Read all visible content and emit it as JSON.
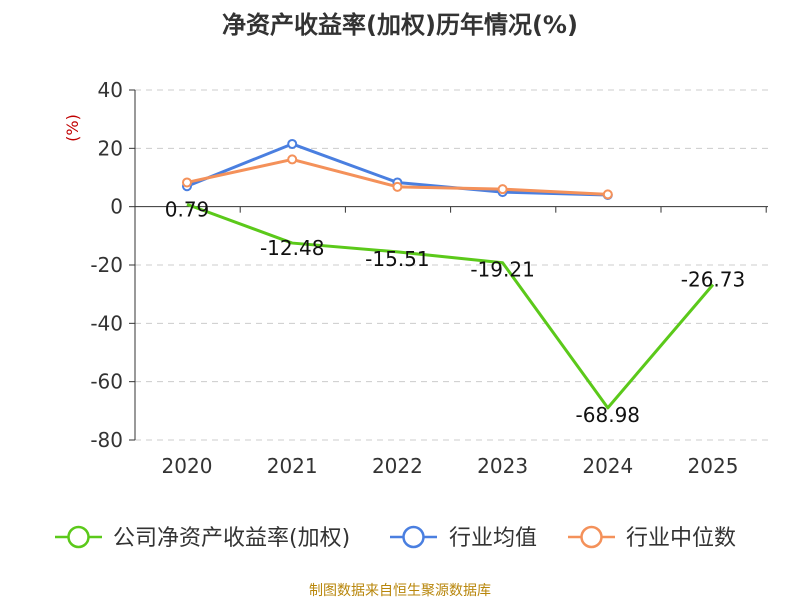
{
  "chart_data": {
    "type": "line",
    "title": "净资产收益率(加权)历年情况(%)",
    "ylabel": "(%)",
    "xlabel": "",
    "categories": [
      "2020",
      "2021",
      "2022",
      "2023",
      "2024",
      "2025"
    ],
    "ylim": [
      -80,
      40
    ],
    "yticks": [
      40,
      20,
      0,
      -20,
      -40,
      -60,
      -80
    ],
    "grid": true,
    "legend_position": "bottom",
    "series": [
      {
        "name": "公司净资产收益率(加权)",
        "color": "#5bc91a",
        "values": [
          0.79,
          -12.48,
          -15.51,
          -19.21,
          -68.98,
          -26.73
        ],
        "labels": [
          "0.79",
          "-12.48",
          "-15.51",
          "-19.21",
          "-68.98",
          "-26.73"
        ]
      },
      {
        "name": "行业均值",
        "color": "#4a7fe0",
        "values": [
          7.0,
          21.5,
          8.3,
          5.0,
          4.0,
          null
        ]
      },
      {
        "name": "行业中位数",
        "color": "#f4915a",
        "values": [
          8.3,
          16.2,
          6.8,
          6.0,
          4.2,
          null
        ]
      }
    ]
  },
  "source_text": "制图数据来自恒生聚源数据库"
}
